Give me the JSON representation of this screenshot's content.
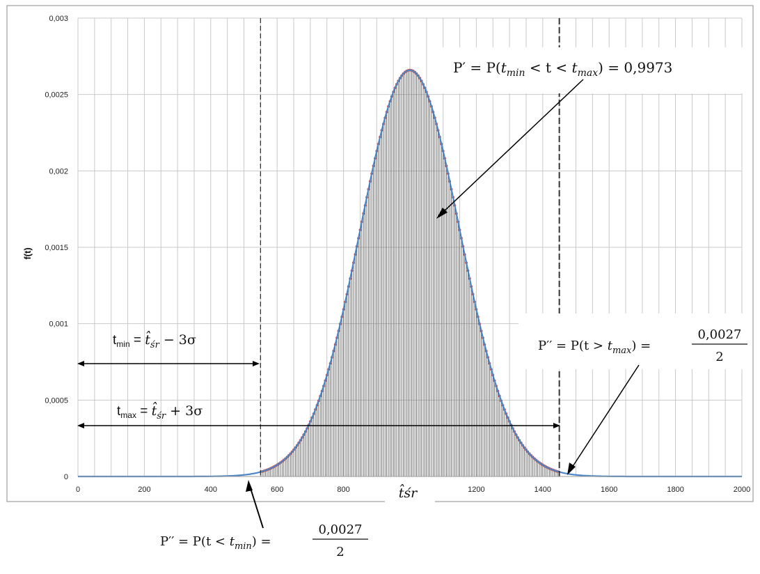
{
  "chart_data": {
    "type": "area",
    "ylabel": "f(t)",
    "xlim": [
      0,
      2000
    ],
    "ylim": [
      0,
      0.003
    ],
    "x_ticks": [
      0,
      200,
      400,
      600,
      800,
      1000,
      1200,
      1400,
      1600,
      1800,
      2000
    ],
    "y_ticks": [
      0,
      0.0005,
      0.001,
      0.0015,
      0.002,
      0.0025,
      0.003
    ],
    "x_tick_labels": [
      "0",
      "200",
      "400",
      "600",
      "800",
      "",
      "1200",
      "1400",
      "1600",
      "1800",
      "2000"
    ],
    "y_tick_labels": [
      "0",
      "0,0005",
      "0,001",
      "0,0015",
      "0,002",
      "0,0025",
      "0,003"
    ],
    "grid": true,
    "mean_label": "t̂śr",
    "distribution": {
      "mean": 1000,
      "sigma": 150
    },
    "vlines": [
      550,
      1450
    ],
    "series": [
      {
        "x": [
          0,
          100,
          200,
          300,
          400,
          450,
          500,
          550,
          600,
          650,
          700,
          750,
          800,
          850,
          900,
          950,
          1000,
          1050,
          1100,
          1150,
          1200,
          1250,
          1300,
          1350,
          1400,
          1450,
          1500,
          1550,
          1600,
          1700,
          1800,
          1900,
          2000
        ],
        "values": [
          0,
          0,
          0,
          0,
          1e-06,
          3e-06,
          1.1e-05,
          3e-05,
          7.6e-05,
          0.000175,
          0.00036,
          0.000663,
          0.001093,
          0.001613,
          0.00213,
          0.002516,
          0.00266,
          0.002516,
          0.00213,
          0.001613,
          0.001093,
          0.000663,
          0.00036,
          0.000175,
          7.6e-05,
          3e-05,
          1.1e-05,
          3e-06,
          1e-06,
          0,
          0,
          0,
          0
        ]
      }
    ],
    "annotations": {
      "p_center": {
        "lhs": "P′ = P(",
        "mid": " < t < ",
        "rhs": ") = 0,9973",
        "tmin": "t",
        "tmin_sub": "min",
        "tmax": "t",
        "tmax_sub": "max"
      },
      "p_right": {
        "lhs": "P′′ = P(t > ",
        "tmax": "t",
        "tmax_sub": "max",
        "rhs": ") =",
        "numerator": "0,0027",
        "denominator": "2"
      },
      "p_left": {
        "lhs": "P′′ = P(t < ",
        "tmin": "t",
        "tmin_sub": "min",
        "rhs": ") =",
        "numerator": "0,0027",
        "denominator": "2"
      },
      "tmin_def": {
        "t": "t",
        "sub": "min",
        "eq": " = ",
        "that": "t̂",
        "that_sub": "śr",
        "op": " − 3σ"
      },
      "tmax_def": {
        "t": "t",
        "sub": "max",
        "eq": " = ",
        "that": "t̂",
        "that_sub": "śr",
        "op": " + 3σ"
      }
    }
  }
}
